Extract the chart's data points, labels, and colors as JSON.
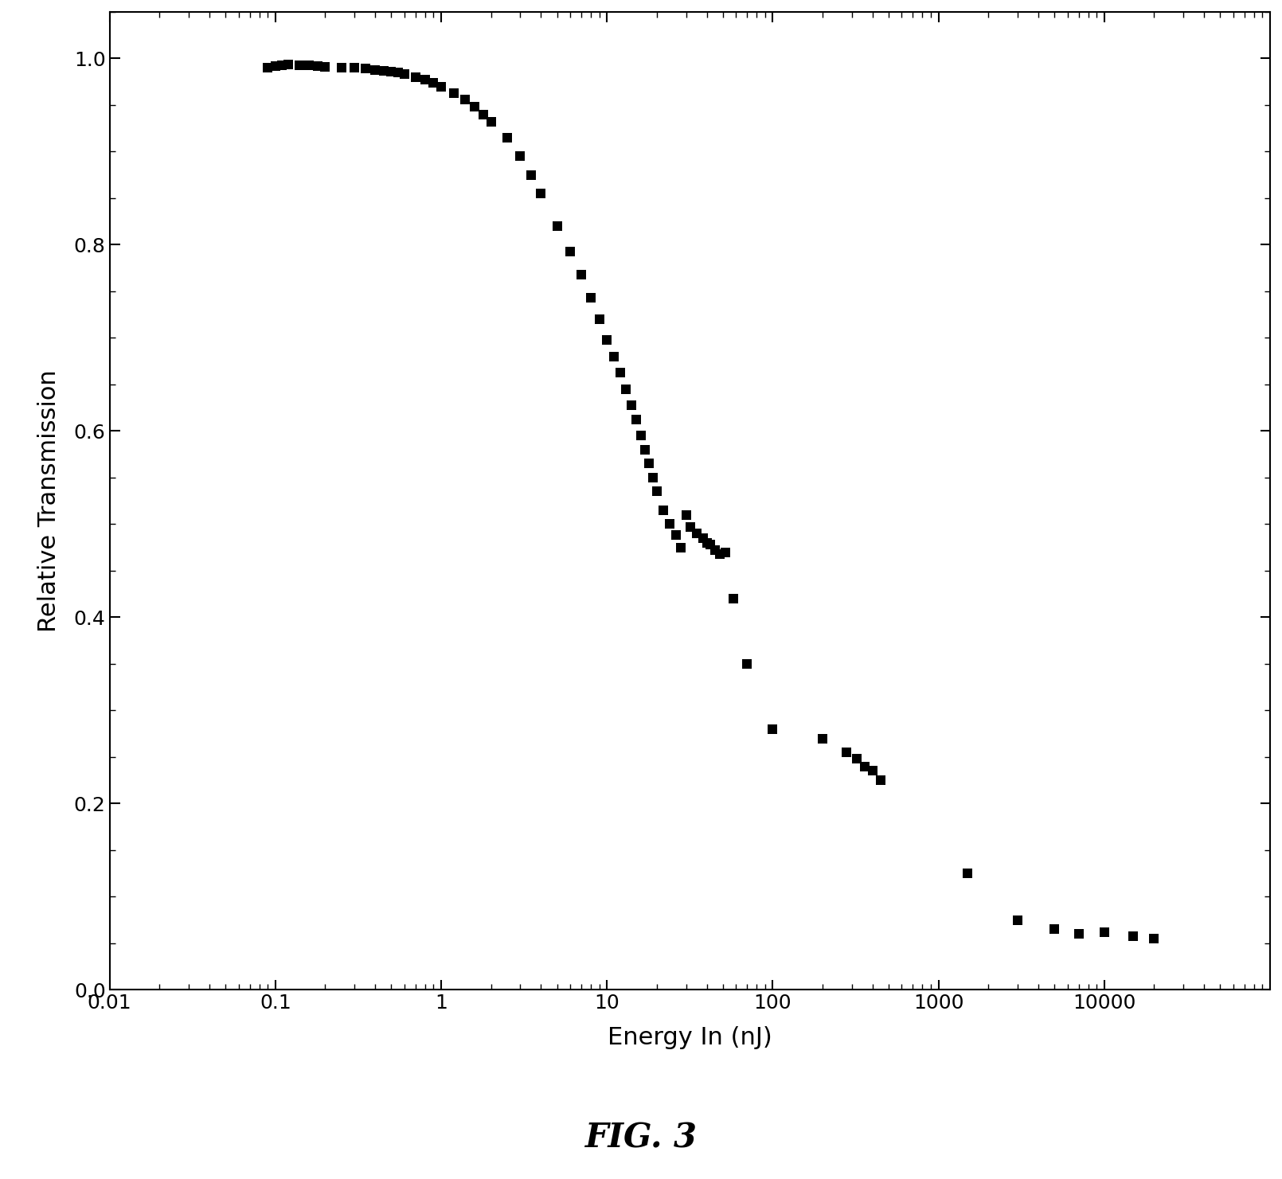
{
  "x_data": [
    0.09,
    0.1,
    0.11,
    0.12,
    0.14,
    0.16,
    0.18,
    0.2,
    0.25,
    0.3,
    0.35,
    0.4,
    0.45,
    0.5,
    0.55,
    0.6,
    0.7,
    0.8,
    0.9,
    1.0,
    1.2,
    1.4,
    1.6,
    1.8,
    2.0,
    2.5,
    3.0,
    3.5,
    4.0,
    5.0,
    6.0,
    7.0,
    8.0,
    9.0,
    10.0,
    11.0,
    12.0,
    13.0,
    14.0,
    15.0,
    16.0,
    17.0,
    18.0,
    19.0,
    20.0,
    22.0,
    24.0,
    26.0,
    28.0,
    30.0,
    32.0,
    35.0,
    38.0,
    40.0,
    42.0,
    45.0,
    48.0,
    52.0,
    58.0,
    70.0,
    100.0,
    200.0,
    280.0,
    320.0,
    360.0,
    400.0,
    450.0,
    1500.0,
    3000.0,
    5000.0,
    7000.0,
    10000.0,
    15000.0,
    20000.0
  ],
  "y_data": [
    0.99,
    0.992,
    0.993,
    0.994,
    0.993,
    0.993,
    0.992,
    0.991,
    0.99,
    0.99,
    0.989,
    0.988,
    0.987,
    0.986,
    0.985,
    0.983,
    0.98,
    0.977,
    0.974,
    0.97,
    0.963,
    0.956,
    0.948,
    0.94,
    0.932,
    0.915,
    0.895,
    0.875,
    0.855,
    0.82,
    0.793,
    0.768,
    0.743,
    0.72,
    0.698,
    0.68,
    0.663,
    0.645,
    0.628,
    0.612,
    0.595,
    0.58,
    0.565,
    0.55,
    0.535,
    0.515,
    0.5,
    0.488,
    0.475,
    0.51,
    0.497,
    0.49,
    0.485,
    0.48,
    0.478,
    0.472,
    0.468,
    0.47,
    0.42,
    0.35,
    0.28,
    0.27,
    0.255,
    0.248,
    0.24,
    0.235,
    0.225,
    0.125,
    0.075,
    0.065,
    0.06,
    0.062,
    0.058,
    0.055
  ],
  "marker": "s",
  "marker_size": 8,
  "marker_color": "#000000",
  "xlabel": "Energy In (nJ)",
  "ylabel": "Relative Transmission",
  "fig_label": "FIG. 3",
  "xlim": [
    0.01,
    100000
  ],
  "ylim": [
    0.0,
    1.05
  ],
  "yticks": [
    0.0,
    0.2,
    0.4,
    0.6,
    0.8,
    1.0
  ],
  "xtick_positions": [
    0.01,
    0.1,
    1,
    10,
    100,
    1000,
    10000
  ],
  "xtick_labels": [
    "0.01",
    "0.1",
    "1",
    "10",
    "100",
    "1000",
    "10000"
  ],
  "background_color": "#ffffff",
  "axis_color": "#000000",
  "tick_fontsize": 18,
  "label_fontsize": 22,
  "fig_label_fontsize": 30
}
